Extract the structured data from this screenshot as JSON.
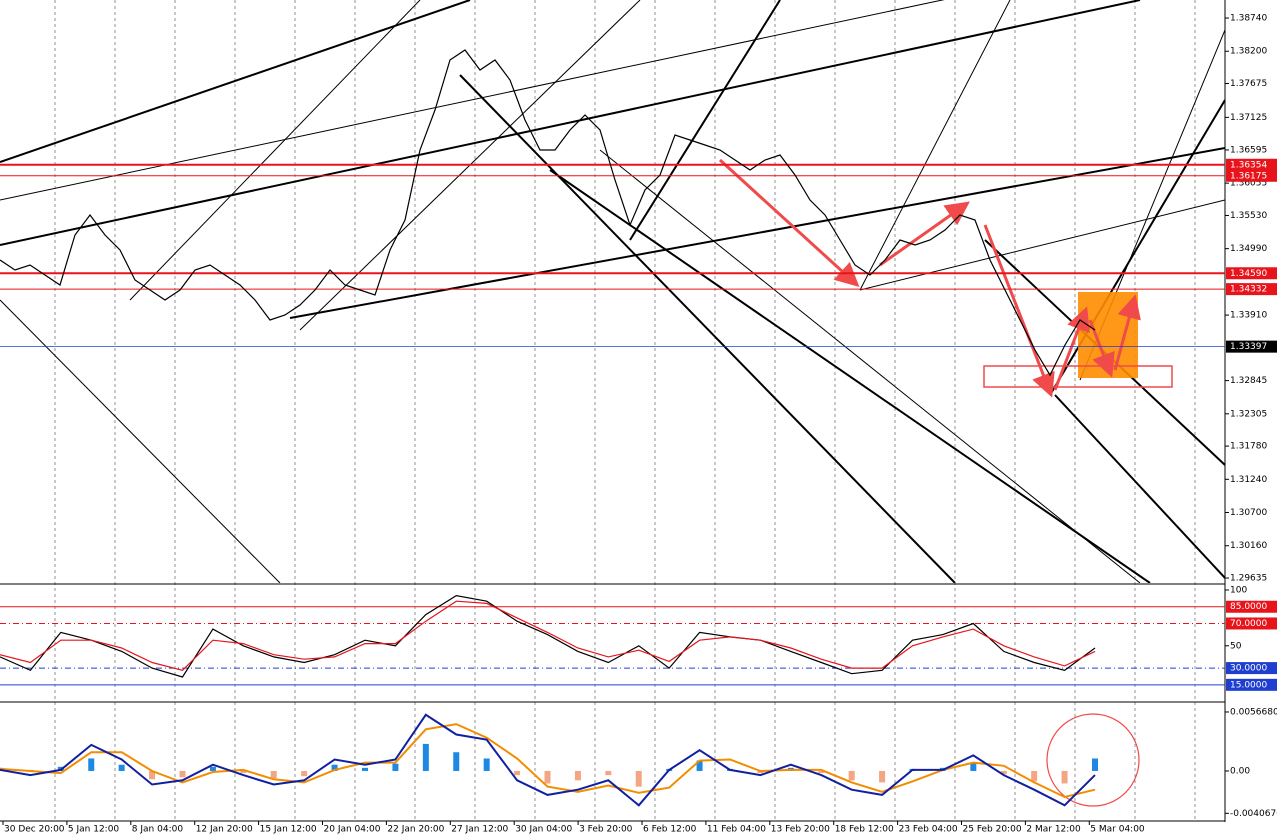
{
  "chart_data": [
    {
      "type": "line",
      "xlim": [
        0,
        1095
      ],
      "ylim": [
        1.29554,
        1.39033
      ],
      "yticks": [
        {
          "value": 1.3874,
          "label": "1.38740"
        },
        {
          "value": 1.382,
          "label": "1.38200"
        },
        1.37675,
        1.37125,
        1.36595,
        1.36055,
        {
          "value": 1.3553,
          "label": "1.35530"
        },
        {
          "value": 1.3499,
          "label": "1.34990"
        },
        {
          "value": 1.3391,
          "label": "1.33910"
        },
        1.32845,
        1.32305,
        {
          "value": 1.3178,
          "label": "1.31780"
        },
        {
          "value": 1.3124,
          "label": "1.31240"
        },
        {
          "value": 1.307,
          "label": "1.30700"
        },
        {
          "value": 1.3016,
          "label": "1.30160"
        },
        1.29635
      ],
      "levels": [
        {
          "value": 1.36354,
          "color": "#e8141c",
          "width": 2
        },
        {
          "value": 1.36175,
          "color": "#e8141c",
          "width": 1
        },
        {
          "value": 1.3459,
          "label": "1.34590",
          "color": "#e8141c",
          "width": 2
        },
        {
          "value": 1.34332,
          "color": "#e8141c",
          "width": 1
        },
        {
          "value": 1.33397,
          "color": "#2040d0",
          "width": 0.7,
          "label_color": "#000000"
        }
      ],
      "series": [
        {
          "color": "#000000",
          "values": [
            1.34805,
            1.34643,
            1.34724,
            1.34561,
            1.34399,
            1.35212,
            1.35537,
            1.35212,
            1.34968,
            1.3448,
            1.34318,
            1.34155,
            1.34318,
            1.34643,
            1.34724,
            1.34561,
            1.34399,
            1.34155,
            1.3383,
            1.33911,
            1.34074,
            1.34318,
            1.34643,
            1.34399,
            1.34318,
            1.34236,
            1.34968,
            1.35456,
            1.36594,
            1.37244,
            1.38057,
            1.3822,
            1.37895,
            1.38057,
            1.37732,
            1.37082,
            1.36594,
            1.36594,
            1.36919,
            1.37163,
            1.36919,
            1.36106,
            1.35374,
            1.35944,
            1.36187,
            1.36838,
            1.36757,
            1.36675,
            1.36594,
            1.36431,
            1.36269,
            1.36431,
            1.36513,
            1.36187,
            1.35781,
            1.35537,
            1.35131,
            1.34724,
            1.34561,
            1.34805,
            1.35131,
            1.3505,
            1.35131,
            1.35293,
            1.35537,
            1.35456,
            1.34805,
            1.34318,
            1.3383,
            1.33342,
            1.32935,
            1.33423,
            1.3383,
            1.33667
          ]
        }
      ]
    },
    {
      "type": "line",
      "xlim": [
        0,
        1095
      ],
      "ylim": [
        0.5,
        103.6
      ],
      "yticks": [
        100,
        50
      ],
      "levels": [
        {
          "value": 85,
          "label": "85.0000",
          "color": "#e8141c",
          "width": 1
        },
        {
          "value": 70,
          "label": "70.0000",
          "color": "#e8141c",
          "width": 1,
          "dash": true
        },
        {
          "value": 30,
          "label": "30.0000",
          "color": "#1f3fd0",
          "width": 1,
          "dash": true
        },
        {
          "value": 15,
          "label": "15.0000",
          "color": "#1f3fd0",
          "width": 1
        }
      ],
      "series": [
        {
          "color": "#000000",
          "values": [
            40,
            28,
            62,
            55,
            45,
            30,
            22,
            65,
            50,
            40,
            35,
            42,
            55,
            50,
            78,
            95,
            90,
            72,
            60,
            45,
            35,
            50,
            30,
            62,
            58,
            55,
            45,
            35,
            25,
            28,
            55,
            60,
            70,
            45,
            35,
            28,
            48
          ]
        },
        {
          "color": "#e8141c",
          "values": [
            42,
            35,
            55,
            55,
            48,
            35,
            28,
            55,
            52,
            42,
            38,
            40,
            52,
            52,
            72,
            90,
            88,
            75,
            62,
            48,
            40,
            46,
            36,
            55,
            58,
            55,
            48,
            38,
            30,
            30,
            50,
            58,
            65,
            50,
            40,
            32,
            45
          ]
        }
      ]
    },
    {
      "type": "macd",
      "xlim": [
        0,
        1095
      ],
      "ylim": [
        -0.00471,
        0.00653
      ],
      "yticks": [
        {
          "value": 0.005668,
          "label": "0.0056680"
        },
        {
          "value": 0,
          "label": "0.00"
        },
        {
          "value": -0.004067,
          "label": "-0.0040670"
        }
      ],
      "x_tick_labels": [
        "30 Dec 20:00",
        "5 Jan 12:00",
        "8 Jan 04:00",
        "12 Jan 20:00",
        "15 Jan 12:00",
        "20 Jan 04:00",
        "22 Jan 20:00",
        "27 Jan 12:00",
        "30 Jan 04:00",
        "3 Feb 20:00",
        "6 Feb 12:00",
        "11 Feb 04:00",
        "13 Feb 20:00",
        "18 Feb 12:00",
        "23 Feb 04:00",
        "25 Feb 20:00",
        "2 Mar 12:00",
        "5 Mar 04:00"
      ],
      "histogram": {
        "positive_color": "#1e88e5",
        "negative_color": "#f4a582",
        "values": [
          0.0003,
          0.0001,
          0.0004,
          0.0012,
          0.0006,
          -0.0008,
          -0.0006,
          0.0004,
          -0.0002,
          -0.0007,
          -0.0005,
          0.0006,
          0.0003,
          0.0007,
          0.0026,
          0.0018,
          0.0012,
          -0.0004,
          -0.0012,
          -0.0009,
          -0.0004,
          -0.0015,
          0.0002,
          0.001,
          0.0002,
          -0.0002,
          0.0003,
          -0.0002,
          -0.0009,
          -0.0011,
          0.0002,
          0.0003,
          0.0008,
          -0.0003,
          -0.001,
          -0.0012,
          0.0012
        ]
      },
      "series": [
        {
          "color": "#f28c00",
          "values": [
            0.0002,
            0,
            -0.0002,
            0.0018,
            0.0018,
            0,
            -0.0011,
            -0.0001,
            0.0001,
            -0.0008,
            -0.0011,
            0.0001,
            0.0008,
            0.0008,
            0.004,
            0.0045,
            0.0032,
            0.0012,
            -0.0015,
            -0.002,
            -0.0014,
            -0.0021,
            -0.0016,
            0.001,
            0.0011,
            0,
            0.0001,
            0.0001,
            -0.0011,
            -0.002,
            -0.001,
            0.0001,
            0.0008,
            0.0005,
            -0.0011,
            -0.0025,
            -0.0018
          ]
        },
        {
          "color": "#1020a0",
          "values": [
            0.0001,
            -0.0004,
            0.0001,
            0.0025,
            0.0011,
            -0.0013,
            -0.0009,
            0.0006,
            -0.0004,
            -0.0013,
            -0.0009,
            0.0011,
            0.0006,
            0.0011,
            0.0054,
            0.0035,
            0.003,
            -0.0009,
            -0.0023,
            -0.0018,
            -0.0009,
            -0.0033,
            0.0001,
            0.002,
            0.0001,
            -0.0004,
            0.0006,
            -0.0004,
            -0.0018,
            -0.0023,
            0.0001,
            0.0001,
            0.0015,
            -0.0004,
            -0.0018,
            -0.0033,
            -0.0004
          ]
        }
      ]
    }
  ]
}
